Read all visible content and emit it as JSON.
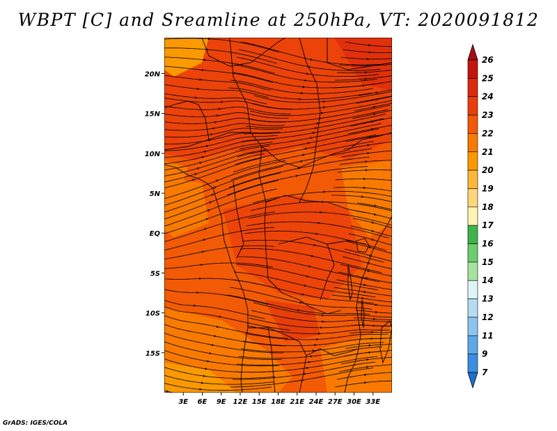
{
  "title": "WBPT [C] and Sreamline at 250hPa, VT: 2020091812",
  "credit": "GrADS: IGES/COLA",
  "map": {
    "variable": "WBPT",
    "units": "C",
    "level": "250hPa",
    "valid_time": "2020091812",
    "lon_range": [
      0,
      36
    ],
    "lat_range": [
      -20,
      24.5
    ],
    "lat_ticks": [
      {
        "value": 20,
        "label": "20N"
      },
      {
        "value": 15,
        "label": "15N"
      },
      {
        "value": 10,
        "label": "10N"
      },
      {
        "value": 5,
        "label": "5N"
      },
      {
        "value": 0,
        "label": "EQ"
      },
      {
        "value": -5,
        "label": "5S"
      },
      {
        "value": -10,
        "label": "10S"
      },
      {
        "value": -15,
        "label": "15S"
      }
    ],
    "lon_ticks": [
      {
        "value": 3,
        "label": "3E"
      },
      {
        "value": 6,
        "label": "6E"
      },
      {
        "value": 9,
        "label": "9E"
      },
      {
        "value": 12,
        "label": "12E"
      },
      {
        "value": 15,
        "label": "15E"
      },
      {
        "value": 18,
        "label": "18E"
      },
      {
        "value": 21,
        "label": "21E"
      },
      {
        "value": 24,
        "label": "24E"
      },
      {
        "value": 27,
        "label": "27E"
      },
      {
        "value": 30,
        "label": "30E"
      },
      {
        "value": 33,
        "label": "33E"
      }
    ]
  },
  "colorbar": {
    "boundaries": [
      "26",
      "25",
      "24",
      "23",
      "22",
      "21",
      "20",
      "19",
      "18",
      "17",
      "16",
      "15",
      "14",
      "13",
      "12",
      "11",
      "9",
      "7"
    ],
    "colors": [
      "#a50f15",
      "#c4140e",
      "#dc2a0e",
      "#ea3f0a",
      "#f25a05",
      "#f87a00",
      "#fb9900",
      "#fdb63a",
      "#fdd778",
      "#fef3b0",
      "#3cb44b",
      "#6dcc6d",
      "#a6e3a0",
      "#dff4f7",
      "#b4dcf5",
      "#8cc3f0",
      "#5ea8ea",
      "#3b8ee0",
      "#1f6fd1"
    ]
  },
  "colors": {
    "field_base": "#f25a05",
    "field_dark": "#ea3f0a",
    "field_light": "#f87a00",
    "field_warm": "#fb9900",
    "field_pale": "#fdb63a"
  }
}
